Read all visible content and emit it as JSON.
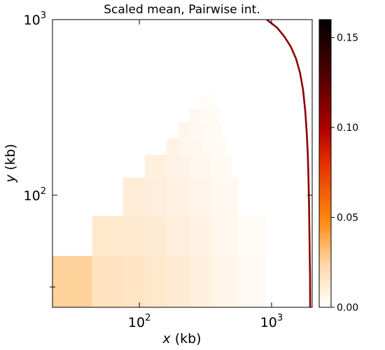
{
  "chart_data": {
    "type": "heatmap",
    "title": "Scaled mean, Pairwise int.",
    "xlabel_var": "x",
    "xlabel_unit": " (kb)",
    "ylabel_var": "y",
    "ylabel_unit": " (kb)",
    "x_scale": "log",
    "y_scale": "log",
    "xlim": [
      22,
      2030
    ],
    "ylim": [
      23,
      1000
    ],
    "x_tick_labels": [
      {
        "value": 100,
        "base": "10",
        "exp": "2"
      },
      {
        "value": 1000,
        "base": "10",
        "exp": "3"
      }
    ],
    "y_tick_labels": [
      {
        "value": 100,
        "base": "10",
        "exp": "2"
      },
      {
        "value": 1000,
        "base": "10",
        "exp": "3"
      }
    ],
    "y_minor_ticks": [
      30
    ],
    "colorbar": {
      "colormap": "gist_heat_r",
      "range": [
        0,
        0.16
      ],
      "ticks": [
        "0.00",
        "0.05",
        "0.10",
        "0.15"
      ],
      "tick_values": [
        0,
        0.05,
        0.1,
        0.15
      ]
    },
    "cells": [
      {
        "x0": 22,
        "x1": 44,
        "y0": 23,
        "y1": 45,
        "value": 0.026
      },
      {
        "x0": 44,
        "x1": 75,
        "y0": 23,
        "y1": 45,
        "value": 0.017
      },
      {
        "x0": 75,
        "x1": 110,
        "y0": 23,
        "y1": 45,
        "value": 0.016
      },
      {
        "x0": 110,
        "x1": 160,
        "y0": 23,
        "y1": 45,
        "value": 0.014
      },
      {
        "x0": 160,
        "x1": 240,
        "y0": 23,
        "y1": 45,
        "value": 0.012
      },
      {
        "x0": 240,
        "x1": 350,
        "y0": 23,
        "y1": 45,
        "value": 0.009
      },
      {
        "x0": 350,
        "x1": 550,
        "y0": 23,
        "y1": 45,
        "value": 0.006
      },
      {
        "x0": 550,
        "x1": 900,
        "y0": 23,
        "y1": 45,
        "value": 0.003
      },
      {
        "x0": 44,
        "x1": 75,
        "y0": 45,
        "y1": 76,
        "value": 0.014
      },
      {
        "x0": 75,
        "x1": 110,
        "y0": 45,
        "y1": 76,
        "value": 0.013
      },
      {
        "x0": 110,
        "x1": 160,
        "y0": 45,
        "y1": 76,
        "value": 0.012
      },
      {
        "x0": 160,
        "x1": 240,
        "y0": 45,
        "y1": 76,
        "value": 0.01
      },
      {
        "x0": 240,
        "x1": 350,
        "y0": 45,
        "y1": 76,
        "value": 0.008
      },
      {
        "x0": 350,
        "x1": 550,
        "y0": 45,
        "y1": 76,
        "value": 0.005
      },
      {
        "x0": 550,
        "x1": 900,
        "y0": 45,
        "y1": 76,
        "value": 0.002
      },
      {
        "x0": 75,
        "x1": 110,
        "y0": 76,
        "y1": 126,
        "value": 0.011
      },
      {
        "x0": 110,
        "x1": 160,
        "y0": 76,
        "y1": 126,
        "value": 0.01
      },
      {
        "x0": 160,
        "x1": 240,
        "y0": 76,
        "y1": 126,
        "value": 0.008
      },
      {
        "x0": 240,
        "x1": 350,
        "y0": 76,
        "y1": 126,
        "value": 0.006
      },
      {
        "x0": 350,
        "x1": 550,
        "y0": 76,
        "y1": 126,
        "value": 0.004
      },
      {
        "x0": 110,
        "x1": 160,
        "y0": 126,
        "y1": 170,
        "value": 0.009
      },
      {
        "x0": 160,
        "x1": 240,
        "y0": 126,
        "y1": 170,
        "value": 0.007
      },
      {
        "x0": 240,
        "x1": 350,
        "y0": 126,
        "y1": 170,
        "value": 0.005
      },
      {
        "x0": 350,
        "x1": 500,
        "y0": 126,
        "y1": 170,
        "value": 0.003
      },
      {
        "x0": 160,
        "x1": 200,
        "y0": 170,
        "y1": 210,
        "value": 0.007
      },
      {
        "x0": 200,
        "x1": 300,
        "y0": 170,
        "y1": 210,
        "value": 0.005
      },
      {
        "x0": 300,
        "x1": 450,
        "y0": 170,
        "y1": 210,
        "value": 0.003
      },
      {
        "x0": 200,
        "x1": 240,
        "y0": 210,
        "y1": 260,
        "value": 0.006
      },
      {
        "x0": 240,
        "x1": 320,
        "y0": 210,
        "y1": 260,
        "value": 0.004
      },
      {
        "x0": 320,
        "x1": 420,
        "y0": 210,
        "y1": 260,
        "value": 0.003
      },
      {
        "x0": 240,
        "x1": 290,
        "y0": 260,
        "y1": 310,
        "value": 0.004
      },
      {
        "x0": 290,
        "x1": 400,
        "y0": 260,
        "y1": 310,
        "value": 0.003
      },
      {
        "x0": 290,
        "x1": 360,
        "y0": 310,
        "y1": 360,
        "value": 0.002
      },
      {
        "x0": 330,
        "x1": 380,
        "y0": 360,
        "y1": 390,
        "value": 0.0015
      }
    ],
    "boundary_line": {
      "color": "#8b0000",
      "value": 0.13,
      "points": [
        [
          920,
          1000
        ],
        [
          1100,
          900
        ],
        [
          1250,
          800
        ],
        [
          1400,
          700
        ],
        [
          1530,
          600
        ],
        [
          1640,
          500
        ],
        [
          1730,
          400
        ],
        [
          1800,
          300
        ],
        [
          1850,
          220
        ],
        [
          1880,
          170
        ],
        [
          1900,
          130
        ],
        [
          1915,
          100
        ],
        [
          1925,
          80
        ],
        [
          1935,
          60
        ],
        [
          1945,
          45
        ],
        [
          1955,
          35
        ],
        [
          1960,
          23
        ]
      ]
    }
  }
}
